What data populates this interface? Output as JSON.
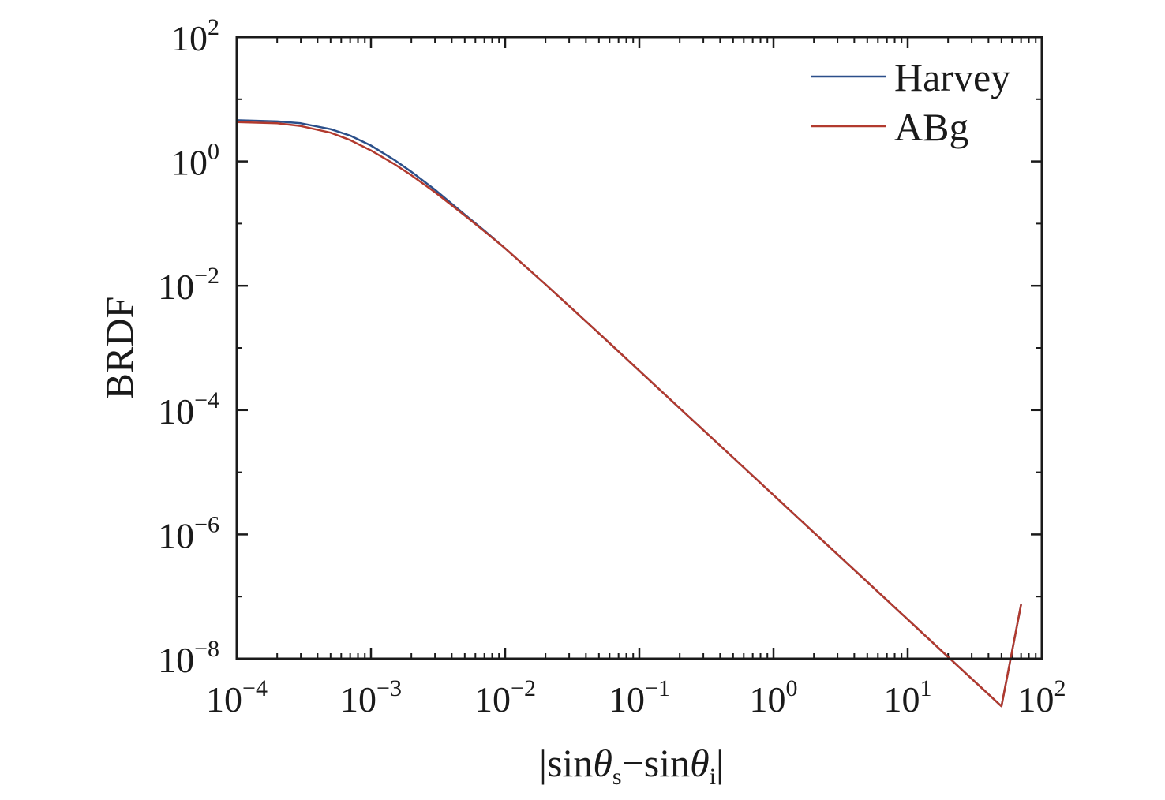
{
  "chart_data": {
    "type": "line",
    "xscale": "log",
    "yscale": "log",
    "xlim": [
      0.0001,
      100
    ],
    "ylim": [
      1e-08,
      100
    ],
    "xlabel": {
      "prefix": "|sin",
      "theta1": "θ",
      "sub1": "s",
      "middle": "−sin",
      "theta2": "θ",
      "sub2": "i",
      "suffix": "|"
    },
    "ylabel": "BRDF",
    "grid": false,
    "legend_position": "top-right",
    "x_ticks": [
      {
        "value": 0.0001,
        "base": "10",
        "exp": "−4"
      },
      {
        "value": 0.001,
        "base": "10",
        "exp": "−3"
      },
      {
        "value": 0.01,
        "base": "10",
        "exp": "−2"
      },
      {
        "value": 0.1,
        "base": "10",
        "exp": "−1"
      },
      {
        "value": 1,
        "base": "10",
        "exp": "0"
      },
      {
        "value": 10,
        "base": "10",
        "exp": "1"
      },
      {
        "value": 100,
        "base": "10",
        "exp": "2"
      }
    ],
    "y_ticks": [
      {
        "value": 1e-08,
        "base": "10",
        "exp": "−8"
      },
      {
        "value": 1e-06,
        "base": "10",
        "exp": "−6"
      },
      {
        "value": 0.0001,
        "base": "10",
        "exp": "−4"
      },
      {
        "value": 0.01,
        "base": "10",
        "exp": "−2"
      },
      {
        "value": 1,
        "base": "10",
        "exp": "0"
      },
      {
        "value": 100,
        "base": "10",
        "exp": "2"
      }
    ],
    "series": [
      {
        "name": "Harvey",
        "color": "#2b4f8a",
        "x": [
          0.0001,
          0.0002,
          0.0003,
          0.0005,
          0.0007,
          0.001,
          0.0015,
          0.002,
          0.003,
          0.005,
          0.007,
          0.01,
          0.02,
          0.05,
          0.1,
          0.2,
          0.5,
          1,
          2,
          5,
          10,
          20,
          50,
          70
        ],
        "y": [
          4.6,
          4.4,
          4.1,
          3.3,
          2.6,
          1.8,
          1.05,
          0.68,
          0.35,
          0.14,
          0.077,
          0.04,
          0.0105,
          0.00172,
          0.00043,
          0.000107,
          1.72e-05,
          4.3e-06,
          1.07e-06,
          1.72e-07,
          4.3e-08,
          1.07e-08,
          1.72e-09,
          7.5e-08
        ]
      },
      {
        "name": "ABg",
        "color": "#b23a2e",
        "x": [
          0.0001,
          0.0002,
          0.0003,
          0.0005,
          0.0007,
          0.001,
          0.0015,
          0.002,
          0.003,
          0.005,
          0.007,
          0.01,
          0.02,
          0.05,
          0.1,
          0.2,
          0.5,
          1,
          2,
          5,
          10,
          20,
          50,
          70
        ],
        "y": [
          4.3,
          4.1,
          3.7,
          2.9,
          2.2,
          1.5,
          0.9,
          0.6,
          0.32,
          0.135,
          0.075,
          0.04,
          0.0105,
          0.00172,
          0.00043,
          0.000107,
          1.72e-05,
          4.3e-06,
          1.07e-06,
          1.72e-07,
          4.3e-08,
          1.07e-08,
          1.72e-09,
          7.5e-08
        ]
      }
    ]
  }
}
